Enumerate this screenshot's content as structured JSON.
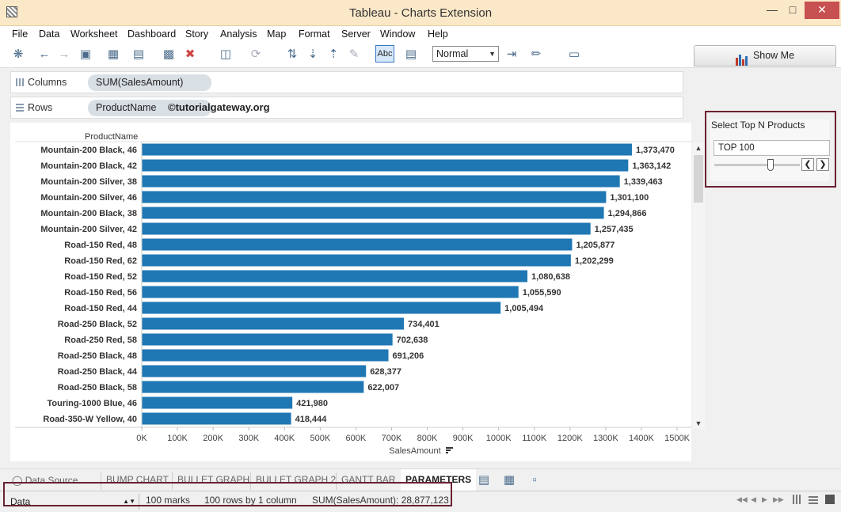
{
  "window": {
    "title": "Tableau - Charts Extension"
  },
  "menu": [
    "File",
    "Data",
    "Worksheet",
    "Dashboard",
    "Story",
    "Analysis",
    "Map",
    "Format",
    "Server",
    "Window",
    "Help"
  ],
  "toolbar": {
    "fit_value": "Normal",
    "show_me_label": "Show Me",
    "abc_label": "Abc"
  },
  "shelves": {
    "columns_label": "Columns",
    "columns_pill": "SUM(SalesAmount)",
    "rows_label": "Rows",
    "rows_pill": "ProductName",
    "watermark": "©tutorialgateway.org"
  },
  "parameter": {
    "title": "Select Top N Products",
    "value": "TOP 100"
  },
  "sheet_tabs": [
    "Data Source",
    "BUMP CHART",
    "BULLET GRAPH",
    "BULLET GRAPH 2",
    "GANTT BAR",
    "PARAMETERS"
  ],
  "status": {
    "data_source": "Data",
    "marks": "100 marks",
    "shape": "100 rows by 1 column",
    "sum": "SUM(SalesAmount): 28,877,123"
  },
  "colors": {
    "bar": "#1f77b4",
    "accent_border": "#6b2132"
  },
  "chart_data": {
    "type": "bar",
    "orientation": "horizontal",
    "row_header": "ProductName",
    "xlabel": "SalesAmount",
    "xlim": [
      0,
      1500000
    ],
    "x_ticks": [
      "0K",
      "100K",
      "200K",
      "300K",
      "400K",
      "500K",
      "600K",
      "700K",
      "800K",
      "900K",
      "1000K",
      "1100K",
      "1200K",
      "1300K",
      "1400K",
      "1500K"
    ],
    "categories": [
      "Mountain-200 Black, 46",
      "Mountain-200 Black, 42",
      "Mountain-200 Silver, 38",
      "Mountain-200 Silver, 46",
      "Mountain-200 Black, 38",
      "Mountain-200 Silver, 42",
      "Road-150 Red, 48",
      "Road-150 Red, 62",
      "Road-150 Red, 52",
      "Road-150 Red, 56",
      "Road-150 Red, 44",
      "Road-250 Black, 52",
      "Road-250 Red, 58",
      "Road-250 Black, 48",
      "Road-250 Black, 44",
      "Road-250 Black, 58",
      "Touring-1000 Blue, 46",
      "Road-350-W Yellow, 40"
    ],
    "values": [
      1373470,
      1363142,
      1339463,
      1301100,
      1294866,
      1257435,
      1205877,
      1202299,
      1080638,
      1055590,
      1005494,
      734401,
      702638,
      691206,
      628377,
      622007,
      421980,
      418444
    ],
    "value_labels": [
      "1,373,470",
      "1,363,142",
      "1,339,463",
      "1,301,100",
      "1,294,866",
      "1,257,435",
      "1,205,877",
      "1,202,299",
      "1,080,638",
      "1,055,590",
      "1,005,494",
      "734,401",
      "702,638",
      "691,206",
      "628,377",
      "622,007",
      "421,980",
      "418,444"
    ]
  }
}
